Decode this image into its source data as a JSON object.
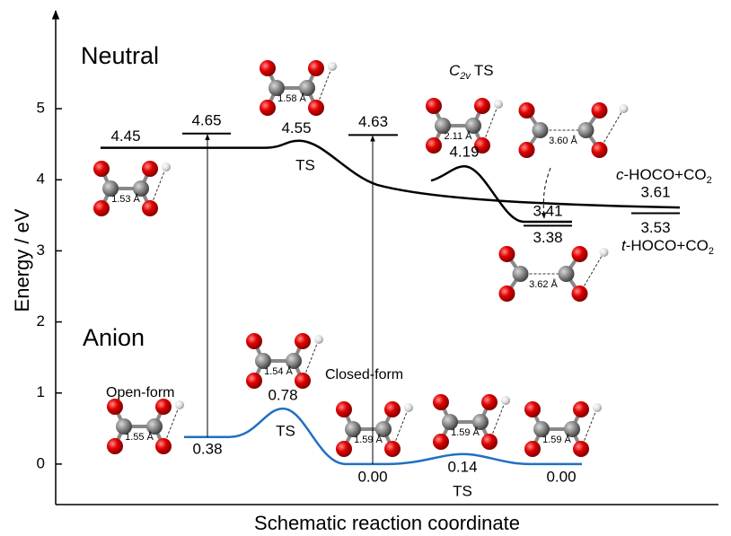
{
  "chart_data": {
    "type": "energy-diagram",
    "xlabel": "Schematic reaction coordinate",
    "ylabel": "Energy / eV",
    "ylim": [
      -0.57,
      6.34
    ],
    "yticks": [
      0,
      1,
      2,
      3,
      4,
      5
    ],
    "series": [
      {
        "name": "Neutral",
        "color": "#000000",
        "values": [
          4.45,
          4.55,
          3.61
        ]
      },
      {
        "name": "Anion",
        "color": "#1f70c1",
        "values": [
          0.38,
          0.78,
          0,
          0.14,
          0
        ],
        "value_labels": [
          "0.38",
          "0.78",
          "0.00",
          "0.14",
          "0.00"
        ]
      }
    ],
    "c2v_curve": {
      "values": [
        4.19,
        3.41
      ]
    },
    "vertical_detachment_levels": [
      4.65,
      4.63
    ],
    "product_levels": [
      3.38,
      3.53
    ],
    "ts_label": "TS",
    "c2v_ts_label": [
      "C",
      "2v",
      "TS"
    ],
    "c_hoco_label": [
      "c",
      "-HOCO+CO",
      "2"
    ],
    "t_hoco_label": [
      "t",
      "-HOCO+CO",
      "2"
    ],
    "open_form": "Open-form",
    "closed_form": "Closed-form",
    "bond_lengths": [
      "1.53 Å",
      "1.58 Å",
      "2.11 Å",
      "3.60 Å",
      "3.62 Å",
      "1.55 Å",
      "1.54 Å",
      "1.59 Å",
      "1.59 Å",
      "1.59 Å"
    ]
  }
}
